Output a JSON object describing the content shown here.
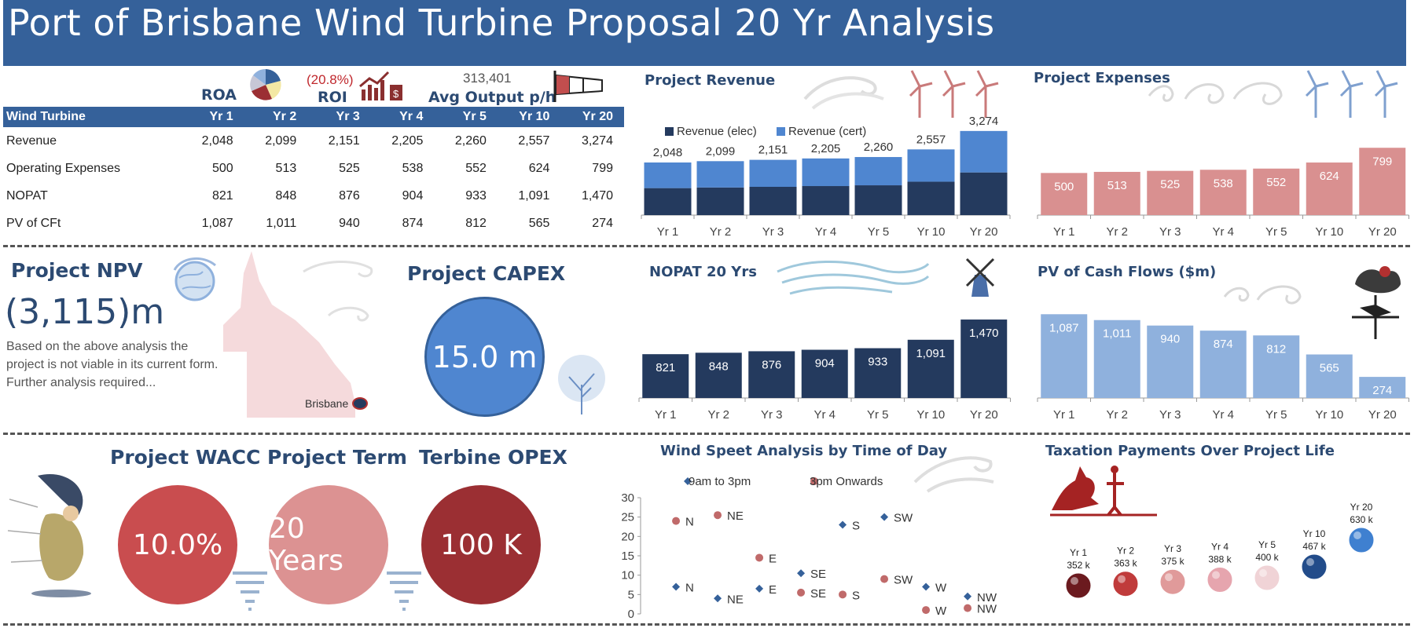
{
  "title": "Port of Brisbane Wind Turbine Proposal 20 Yr Analysis",
  "kpis": {
    "roa_label": "ROA",
    "roi_value": "(20.8%)",
    "roi_label": "ROI",
    "output_value": "313,401",
    "output_label": "Avg Output p/h"
  },
  "table": {
    "headers": [
      "Wind Turbine",
      "Yr 1",
      "Yr 2",
      "Yr 3",
      "Yr 4",
      "Yr 5",
      "Yr 10",
      "Yr 20"
    ],
    "rows": [
      {
        "label": "Revenue",
        "values": [
          "2,048",
          "2,099",
          "2,151",
          "2,205",
          "2,260",
          "2,557",
          "3,274"
        ]
      },
      {
        "label": "Operating Expenses",
        "values": [
          "500",
          "513",
          "525",
          "538",
          "552",
          "624",
          "799"
        ]
      },
      {
        "label": "NOPAT",
        "values": [
          "821",
          "848",
          "876",
          "904",
          "933",
          "1,091",
          "1,470"
        ]
      },
      {
        "label": "PV of CFt",
        "values": [
          "1,087",
          "1,011",
          "940",
          "874",
          "812",
          "565",
          "274"
        ]
      }
    ]
  },
  "npv": {
    "title": "Project NPV",
    "value": "(3,115)m",
    "note": "Based on the  above analysis the project is not viable in its current form. Further analysis required...",
    "map_label": "Brisbane"
  },
  "capex": {
    "title": "Project CAPEX",
    "value": "15.0 m"
  },
  "wacc": {
    "title": "Project WACC",
    "value": "10.0%"
  },
  "term": {
    "title": "Project Term",
    "value": "20 Years"
  },
  "opex": {
    "title": "Terbine OPEX",
    "value": "100 K"
  },
  "colors": {
    "navy": "#243a5e",
    "blue": "#4f86d0",
    "pink": "#d99090",
    "lightblue": "#8fb1dd",
    "title": "#35619a"
  },
  "chart_data": [
    {
      "type": "bar",
      "title": "Project Revenue",
      "categories": [
        "Yr 1",
        "Yr 2",
        "Yr 3",
        "Yr 4",
        "Yr 5",
        "Yr 10",
        "Yr 20"
      ],
      "series": [
        {
          "name": "Revenue (elec)",
          "values": [
            1050,
            1075,
            1100,
            1130,
            1160,
            1300,
            1660
          ]
        },
        {
          "name": "Revenue (cert)",
          "values": [
            998,
            1024,
            1051,
            1075,
            1100,
            1257,
            1614
          ]
        }
      ],
      "totals": [
        "2,048",
        "2,099",
        "2,151",
        "2,205",
        "2,260",
        "2,557",
        "3,274"
      ],
      "ylim": [
        0,
        3300
      ]
    },
    {
      "type": "bar",
      "title": "Project Expenses",
      "categories": [
        "Yr 1",
        "Yr 2",
        "Yr 3",
        "Yr 4",
        "Yr 5",
        "Yr 10",
        "Yr 20"
      ],
      "values": [
        500,
        513,
        525,
        538,
        552,
        624,
        799
      ],
      "labels": [
        "500",
        "513",
        "525",
        "538",
        "552",
        "624",
        "799"
      ],
      "ylim": [
        0,
        820
      ]
    },
    {
      "type": "bar",
      "title": "NOPAT 20 Yrs",
      "categories": [
        "Yr 1",
        "Yr 2",
        "Yr 3",
        "Yr 4",
        "Yr 5",
        "Yr 10",
        "Yr 20"
      ],
      "values": [
        821,
        848,
        876,
        904,
        933,
        1091,
        1470
      ],
      "labels": [
        "821",
        "848",
        "876",
        "904",
        "933",
        "1,091",
        "1,470"
      ],
      "ylim": [
        0,
        1500
      ]
    },
    {
      "type": "bar",
      "title": "PV of Cash Flows ($m)",
      "categories": [
        "Yr 1",
        "Yr 2",
        "Yr 3",
        "Yr 4",
        "Yr 5",
        "Yr 10",
        "Yr 20"
      ],
      "values": [
        1087,
        1011,
        940,
        874,
        812,
        565,
        274
      ],
      "labels": [
        "1,087",
        "1,011",
        "940",
        "874",
        "812",
        "565",
        "274"
      ],
      "ylim": [
        0,
        1100
      ]
    },
    {
      "type": "scatter",
      "title": "Wind Speet Analysis by Time of Day",
      "yticks": [
        "0",
        "5",
        "10",
        "15",
        "20",
        "25",
        "30"
      ],
      "ylim": [
        0,
        30
      ],
      "series": [
        {
          "name": "9am to 3pm",
          "points": [
            {
              "x": 1,
              "y": 7,
              "label": "N"
            },
            {
              "x": 2,
              "y": 4,
              "label": "NE"
            },
            {
              "x": 3,
              "y": 6.5,
              "label": "E"
            },
            {
              "x": 4,
              "y": 10.5,
              "label": "SE"
            },
            {
              "x": 5,
              "y": 23,
              "label": "S"
            },
            {
              "x": 6,
              "y": 25,
              "label": "SW"
            },
            {
              "x": 7,
              "y": 7,
              "label": "W"
            },
            {
              "x": 8,
              "y": 4.5,
              "label": "NW"
            }
          ]
        },
        {
          "name": "3pm Onwards",
          "points": [
            {
              "x": 1,
              "y": 24,
              "label": "N"
            },
            {
              "x": 2,
              "y": 25.5,
              "label": "NE"
            },
            {
              "x": 3,
              "y": 14.5,
              "label": "E"
            },
            {
              "x": 4,
              "y": 5.5,
              "label": "SE"
            },
            {
              "x": 5,
              "y": 5,
              "label": "S"
            },
            {
              "x": 6,
              "y": 9,
              "label": "SW"
            },
            {
              "x": 7,
              "y": 1,
              "label": "W"
            },
            {
              "x": 8,
              "y": 1.5,
              "label": "NW"
            }
          ]
        }
      ]
    },
    {
      "type": "scatter",
      "title": "Taxation Payments Over Project Life",
      "points": [
        {
          "year": "Yr 1",
          "value": "352 k",
          "v": 352,
          "color": "#6b1a1f"
        },
        {
          "year": "Yr 2",
          "value": "363 k",
          "v": 363,
          "color": "#c03b3b"
        },
        {
          "year": "Yr 3",
          "value": "375 k",
          "v": 375,
          "color": "#e09a9a"
        },
        {
          "year": "Yr 4",
          "value": "388 k",
          "v": 388,
          "color": "#e6a5ae"
        },
        {
          "year": "Yr 5",
          "value": "400 k",
          "v": 400,
          "color": "#f0d3d6"
        },
        {
          "year": "Yr 10",
          "value": "467 k",
          "v": 467,
          "color": "#224c8a"
        },
        {
          "year": "Yr 20",
          "value": "630 k",
          "v": 630,
          "color": "#3f80d0"
        }
      ]
    }
  ]
}
